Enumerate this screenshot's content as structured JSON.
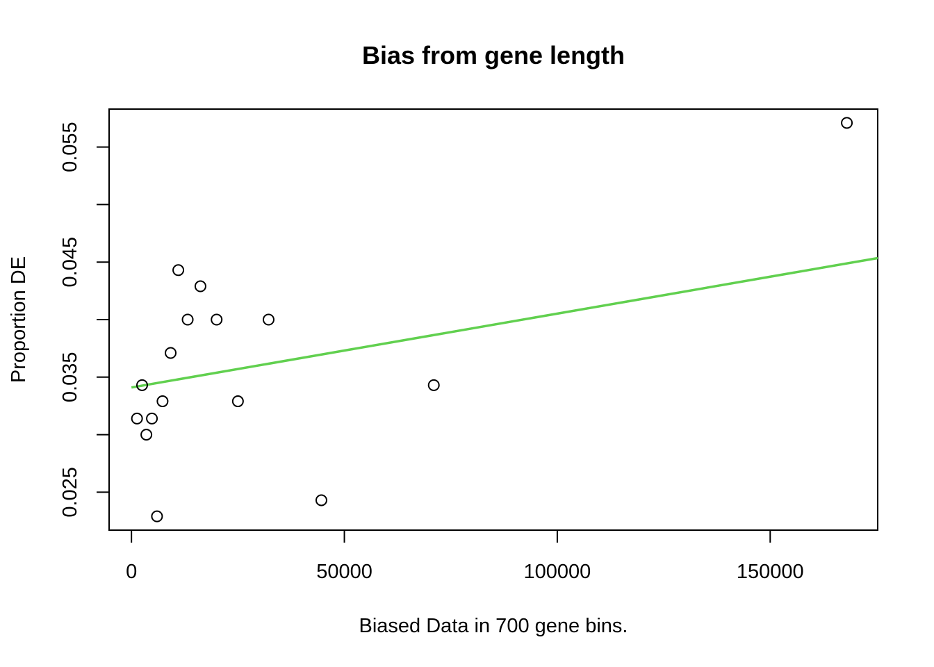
{
  "chart_data": {
    "type": "scatter",
    "title": "Bias from gene length",
    "xlabel": "Biased Data in 700 gene bins.",
    "ylabel": "Proportion DE",
    "xlim": [
      -5250,
      175250
    ],
    "ylim": [
      0.0217,
      0.0583
    ],
    "x_ticks": [
      0,
      50000,
      100000,
      150000
    ],
    "x_tick_labels": [
      "0",
      "50000",
      "100000",
      "150000"
    ],
    "y_ticks": [
      0.025,
      0.03,
      0.035,
      0.04,
      0.045,
      0.05,
      0.055
    ],
    "y_tick_labels": [
      "0.025",
      "",
      "0.035",
      "",
      "0.045",
      "",
      "0.055"
    ],
    "grid": false,
    "points": {
      "x": [
        1300,
        2500,
        3500,
        4800,
        6000,
        7300,
        9200,
        11000,
        13200,
        16200,
        20000,
        25000,
        32200,
        44600,
        71000,
        168000
      ],
      "y": [
        0.0314,
        0.0343,
        0.03,
        0.0314,
        0.0229,
        0.0329,
        0.0371,
        0.0443,
        0.04,
        0.0429,
        0.04,
        0.0329,
        0.04,
        0.0243,
        0.0343,
        0.0571
      ],
      "marker": "open-circle",
      "color": "#000000"
    },
    "fit_line": {
      "x": [
        0,
        175250
      ],
      "y": [
        0.0341,
        0.04535
      ],
      "color": "#61D04F"
    }
  }
}
